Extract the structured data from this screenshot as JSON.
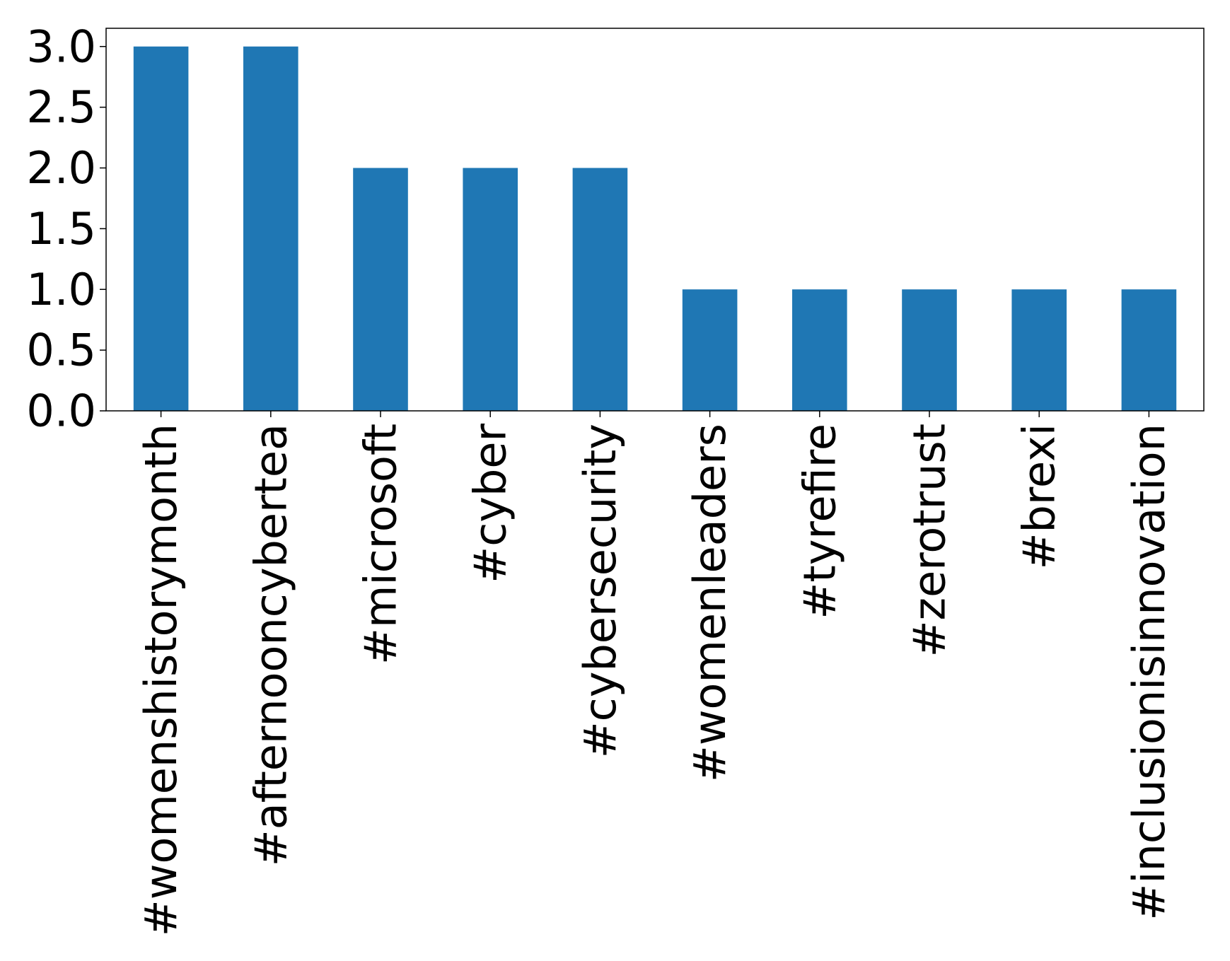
{
  "chart_data": {
    "type": "bar",
    "title": "",
    "xlabel": "",
    "ylabel": "",
    "categories": [
      "#womenshistorymonth",
      "#afternooncybertea",
      "#microsoft",
      "#cyber",
      "#cybersecurity",
      "#womenleaders",
      "#tyrefire",
      "#zerotrust",
      "#brexi",
      "#inclusionisinnovation"
    ],
    "values": [
      3,
      3,
      2,
      2,
      2,
      1,
      1,
      1,
      1,
      1
    ],
    "ylim": [
      0,
      3.15
    ],
    "yticks": [
      0.0,
      0.5,
      1.0,
      1.5,
      2.0,
      2.5,
      3.0
    ],
    "ytick_labels": [
      "0.0",
      "0.5",
      "1.0",
      "1.5",
      "2.0",
      "2.5",
      "3.0"
    ],
    "grid": false,
    "legend": "none",
    "colors": {
      "bar": "#1f77b4",
      "axes": "#000000",
      "background": "#ffffff"
    }
  }
}
